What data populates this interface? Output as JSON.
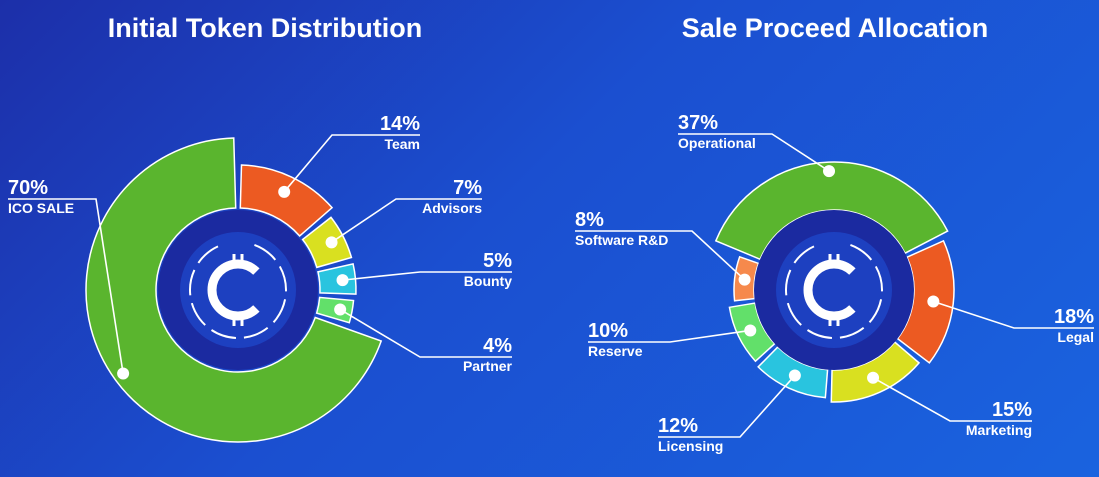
{
  "chart_data": [
    {
      "type": "pie",
      "title": "Initial Token Distribution",
      "categories": [
        "ICO SALE",
        "Team",
        "Advisors",
        "Bounty",
        "Partner"
      ],
      "values": [
        70,
        14,
        7,
        5,
        4
      ],
      "labels": [
        "70%",
        "14%",
        "7%",
        "5%",
        "4%"
      ],
      "colors": [
        "#5ab52e",
        "#ec5a22",
        "#d9e020",
        "#29c4df",
        "#62e06a"
      ],
      "center_logo": "coin-logo-icon"
    },
    {
      "type": "pie",
      "title": "Sale Proceed Allocation",
      "categories": [
        "Operational",
        "Legal",
        "Marketing",
        "Licensing",
        "Reserve",
        "Software R&D"
      ],
      "values": [
        37,
        18,
        15,
        12,
        10,
        8
      ],
      "labels": [
        "37%",
        "18%",
        "15%",
        "12%",
        "10%",
        "8%"
      ],
      "colors": [
        "#5ab52e",
        "#ec5a22",
        "#d9e020",
        "#29c4df",
        "#62e06a",
        "#f6894c"
      ],
      "center_logo": "coin-logo-icon"
    }
  ]
}
